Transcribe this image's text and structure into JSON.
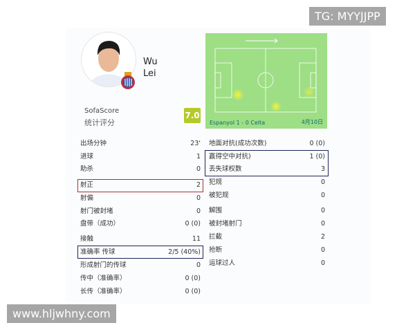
{
  "watermarks": {
    "top": "TG: MYYJJPP",
    "bottom": "www.hljwhny.com"
  },
  "player": {
    "first": "Wu",
    "last": "Lei",
    "source": "SofaScore",
    "rating_label": "统计评分",
    "rating": "7.0"
  },
  "match": {
    "score": "Espanyol 1 - 0 Celta",
    "date": "4月10日"
  },
  "left_stats": [
    {
      "label": "出场分钟",
      "value": "23'"
    },
    {
      "label": "进球",
      "value": "1"
    },
    {
      "label": "助杀",
      "value": "0"
    },
    {
      "label": "射正",
      "value": "2"
    },
    {
      "label": "射偏",
      "value": "0"
    },
    {
      "label": "射门被封堵",
      "value": "0"
    },
    {
      "label": "盘带（成功）",
      "value": "0 (0)"
    },
    {
      "label": "接触",
      "value": "11"
    },
    {
      "label": "准确率 传球",
      "value": "2/5 (40%)"
    },
    {
      "label": "形成射门的传球",
      "value": "0"
    },
    {
      "label": "传中（准确率）",
      "value": "0 (0)"
    },
    {
      "label": "长传（准确率）",
      "value": "0 (0)"
    }
  ],
  "right_stats": [
    {
      "label": "地面对抗(成功次数)",
      "value": "0 (0)"
    },
    {
      "label": "赢得空中对抗)",
      "value": "1 (0)"
    },
    {
      "label": "丢失球权数",
      "value": "3"
    },
    {
      "label": "犯规",
      "value": "0"
    },
    {
      "label": "被犯规",
      "value": "0"
    },
    {
      "label": "解围",
      "value": "0"
    },
    {
      "label": "被封堵射门",
      "value": "0"
    },
    {
      "label": "拦截",
      "value": "2"
    },
    {
      "label": "抢断",
      "value": "0"
    },
    {
      "label": "运球过人",
      "value": "0"
    }
  ],
  "colors": {
    "rating": "#b5c92a",
    "pitch": "#9ede85",
    "highlight_red": "#a3303a",
    "highlight_navy": "#1f2358"
  }
}
